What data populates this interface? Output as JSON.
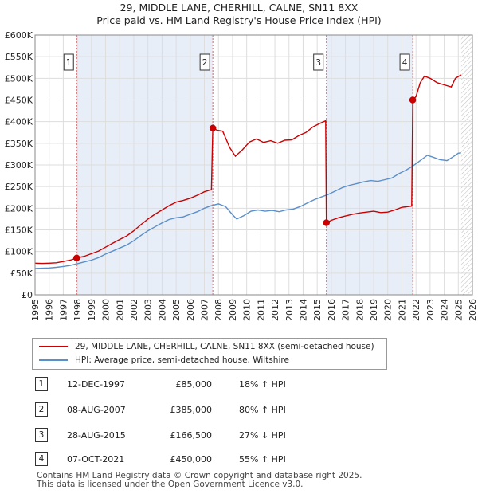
{
  "title": {
    "line1": "29, MIDDLE LANE, CHERHILL, CALNE, SN11 8XX",
    "line2": "Price paid vs. HM Land Registry's House Price Index (HPI)"
  },
  "chart_data": {
    "type": "line",
    "x_ticks": [
      "1995",
      "1996",
      "1997",
      "1998",
      "1999",
      "2000",
      "2001",
      "2002",
      "2003",
      "2004",
      "2005",
      "2006",
      "2007",
      "2008",
      "2009",
      "2010",
      "2011",
      "2012",
      "2013",
      "2014",
      "2015",
      "2016",
      "2017",
      "2018",
      "2019",
      "2020",
      "2021",
      "2022",
      "2023",
      "2024",
      "2025",
      "2026"
    ],
    "y_ticks": [
      "£0",
      "£50K",
      "£100K",
      "£150K",
      "£200K",
      "£250K",
      "£300K",
      "£350K",
      "£400K",
      "£450K",
      "£500K",
      "£550K",
      "£600K"
    ],
    "xlim": [
      1995,
      2026
    ],
    "ylim": [
      0,
      600000
    ],
    "grid": true,
    "colors": {
      "price_line": "#cc0000",
      "hpi_line": "#5b8fc9",
      "shade": "#e8eef8",
      "hatch": "#bbbbbb",
      "vline": "#e06060",
      "grid": "#dddddd"
    },
    "series": [
      {
        "name": "29, MIDDLE LANE, CHERHILL, CALNE, SN11 8XX (semi-detached house)",
        "color": "#cc0000",
        "points": [
          [
            1995.0,
            73000
          ],
          [
            1995.5,
            72500
          ],
          [
            1996.0,
            73000
          ],
          [
            1996.5,
            74000
          ],
          [
            1997.0,
            77000
          ],
          [
            1997.5,
            80000
          ],
          [
            1997.95,
            85000
          ],
          [
            1998.5,
            89000
          ],
          [
            1999.0,
            95000
          ],
          [
            1999.5,
            101000
          ],
          [
            2000.0,
            110000
          ],
          [
            2000.5,
            119000
          ],
          [
            2001.0,
            128000
          ],
          [
            2001.5,
            136000
          ],
          [
            2002.0,
            148000
          ],
          [
            2002.5,
            162000
          ],
          [
            2003.0,
            175000
          ],
          [
            2003.5,
            186000
          ],
          [
            2004.0,
            196000
          ],
          [
            2004.5,
            206000
          ],
          [
            2005.0,
            214000
          ],
          [
            2005.5,
            218000
          ],
          [
            2006.0,
            223000
          ],
          [
            2006.5,
            230000
          ],
          [
            2007.0,
            238000
          ],
          [
            2007.5,
            243000
          ],
          [
            2007.6,
            385000
          ],
          [
            2007.9,
            380000
          ],
          [
            2008.3,
            378000
          ],
          [
            2008.8,
            340000
          ],
          [
            2009.2,
            320000
          ],
          [
            2009.7,
            335000
          ],
          [
            2010.2,
            353000
          ],
          [
            2010.7,
            360000
          ],
          [
            2011.2,
            352000
          ],
          [
            2011.7,
            356000
          ],
          [
            2012.2,
            350000
          ],
          [
            2012.7,
            357000
          ],
          [
            2013.2,
            358000
          ],
          [
            2013.7,
            368000
          ],
          [
            2014.2,
            375000
          ],
          [
            2014.7,
            388000
          ],
          [
            2015.2,
            396000
          ],
          [
            2015.6,
            402000
          ],
          [
            2015.65,
            166500
          ],
          [
            2016.0,
            172000
          ],
          [
            2016.5,
            178000
          ],
          [
            2017.0,
            182000
          ],
          [
            2017.5,
            186000
          ],
          [
            2018.0,
            189000
          ],
          [
            2018.5,
            191000
          ],
          [
            2019.0,
            193000
          ],
          [
            2019.5,
            190000
          ],
          [
            2020.0,
            191000
          ],
          [
            2020.5,
            196000
          ],
          [
            2021.0,
            202000
          ],
          [
            2021.7,
            205000
          ],
          [
            2021.77,
            450000
          ],
          [
            2022.0,
            458000
          ],
          [
            2022.3,
            490000
          ],
          [
            2022.6,
            505000
          ],
          [
            2023.0,
            500000
          ],
          [
            2023.5,
            490000
          ],
          [
            2024.0,
            485000
          ],
          [
            2024.5,
            480000
          ],
          [
            2024.8,
            500000
          ],
          [
            2025.2,
            508000
          ]
        ]
      },
      {
        "name": "HPI: Average price, semi-detached house, Wiltshire",
        "color": "#5b8fc9",
        "points": [
          [
            1995.0,
            61000
          ],
          [
            1995.5,
            61500
          ],
          [
            1996.0,
            62000
          ],
          [
            1996.5,
            63500
          ],
          [
            1997.0,
            65500
          ],
          [
            1997.5,
            68000
          ],
          [
            1998.0,
            72000
          ],
          [
            1998.5,
            76000
          ],
          [
            1999.0,
            80000
          ],
          [
            1999.5,
            86000
          ],
          [
            2000.0,
            94000
          ],
          [
            2000.5,
            101000
          ],
          [
            2001.0,
            108000
          ],
          [
            2001.5,
            115000
          ],
          [
            2002.0,
            125000
          ],
          [
            2002.5,
            137000
          ],
          [
            2003.0,
            148000
          ],
          [
            2003.5,
            157000
          ],
          [
            2004.0,
            166000
          ],
          [
            2004.5,
            174000
          ],
          [
            2005.0,
            178000
          ],
          [
            2005.5,
            180000
          ],
          [
            2006.0,
            186000
          ],
          [
            2006.5,
            192000
          ],
          [
            2007.0,
            200000
          ],
          [
            2007.5,
            206000
          ],
          [
            2008.0,
            210000
          ],
          [
            2008.5,
            204000
          ],
          [
            2009.0,
            185000
          ],
          [
            2009.3,
            175000
          ],
          [
            2009.8,
            183000
          ],
          [
            2010.3,
            193000
          ],
          [
            2010.8,
            196000
          ],
          [
            2011.3,
            193000
          ],
          [
            2011.8,
            195000
          ],
          [
            2012.3,
            192000
          ],
          [
            2012.8,
            196000
          ],
          [
            2013.3,
            198000
          ],
          [
            2013.8,
            204000
          ],
          [
            2014.3,
            212000
          ],
          [
            2014.8,
            220000
          ],
          [
            2015.3,
            226000
          ],
          [
            2015.8,
            232000
          ],
          [
            2016.3,
            240000
          ],
          [
            2016.8,
            248000
          ],
          [
            2017.3,
            253000
          ],
          [
            2017.8,
            257000
          ],
          [
            2018.3,
            261000
          ],
          [
            2018.8,
            264000
          ],
          [
            2019.3,
            262000
          ],
          [
            2019.8,
            266000
          ],
          [
            2020.3,
            270000
          ],
          [
            2020.8,
            280000
          ],
          [
            2021.3,
            288000
          ],
          [
            2021.8,
            298000
          ],
          [
            2022.3,
            310000
          ],
          [
            2022.8,
            322000
          ],
          [
            2023.2,
            318000
          ],
          [
            2023.7,
            312000
          ],
          [
            2024.2,
            310000
          ],
          [
            2024.6,
            318000
          ],
          [
            2025.0,
            327000
          ],
          [
            2025.2,
            328000
          ]
        ]
      }
    ],
    "transactions": [
      {
        "n": "1",
        "year": 1997.95,
        "price": 85000
      },
      {
        "n": "2",
        "year": 2007.6,
        "price": 385000
      },
      {
        "n": "3",
        "year": 2015.65,
        "price": 166500
      },
      {
        "n": "4",
        "year": 2021.77,
        "price": 450000
      }
    ],
    "shaded_ranges": [
      [
        1997.95,
        2007.6
      ],
      [
        2015.65,
        2021.77
      ]
    ],
    "future_hatch_from": 2025.2
  },
  "legend": {
    "property": "29, MIDDLE LANE, CHERHILL, CALNE, SN11 8XX (semi-detached house)",
    "hpi": "HPI: Average price, semi-detached house, Wiltshire"
  },
  "table": [
    {
      "n": "1",
      "date": "12-DEC-1997",
      "price": "£85,000",
      "hpi": "18% ↑ HPI"
    },
    {
      "n": "2",
      "date": "08-AUG-2007",
      "price": "£385,000",
      "hpi": "80% ↑ HPI"
    },
    {
      "n": "3",
      "date": "28-AUG-2015",
      "price": "£166,500",
      "hpi": "27% ↓ HPI"
    },
    {
      "n": "4",
      "date": "07-OCT-2021",
      "price": "£450,000",
      "hpi": "55% ↑ HPI"
    }
  ],
  "footer": {
    "line1": "Contains HM Land Registry data © Crown copyright and database right 2025.",
    "line2": "This data is licensed under the Open Government Licence v3.0."
  }
}
